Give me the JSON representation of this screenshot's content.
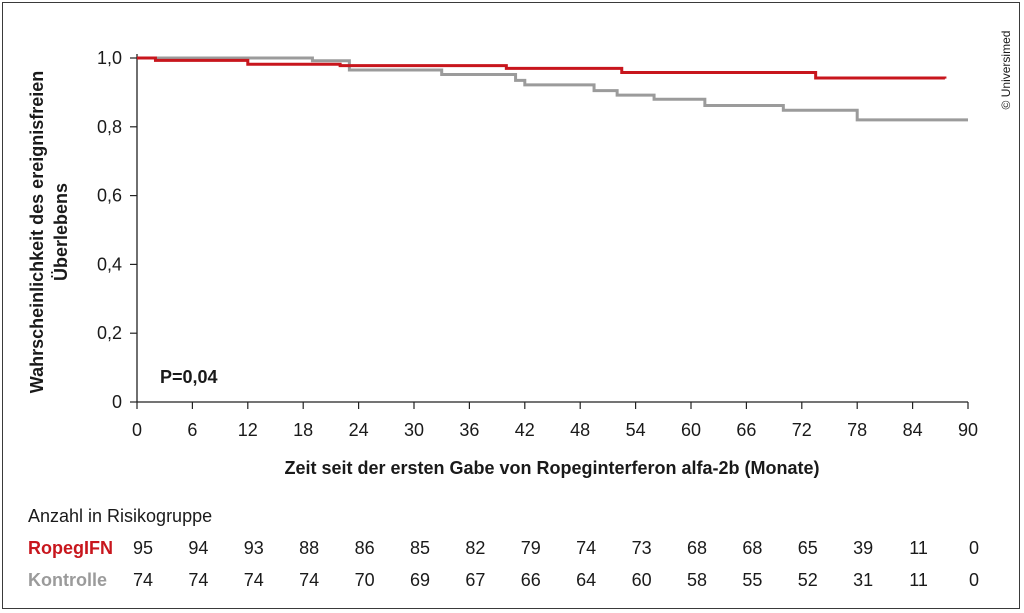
{
  "credit": "© Universimed",
  "p_value": "P=0,04",
  "chart_data": {
    "type": "line",
    "step": true,
    "xlabel": "Zeit seit der ersten Gabe von Ropeginterferon alfa-2b (Monate)",
    "ylabel_lines": [
      "Wahrscheinlichkeit des ereignisfreien",
      "Überlebens"
    ],
    "xlim": [
      0,
      90
    ],
    "ylim": [
      0,
      1
    ],
    "x_ticks": [
      0,
      6,
      12,
      18,
      24,
      30,
      36,
      42,
      48,
      54,
      60,
      66,
      72,
      78,
      84,
      90
    ],
    "x_tick_labels": [
      "0",
      "6",
      "12",
      "18",
      "24",
      "30",
      "36",
      "42",
      "48",
      "54",
      "60",
      "66",
      "72",
      "78",
      "84",
      "90"
    ],
    "y_ticks": [
      0,
      0.2,
      0.4,
      0.6,
      0.8,
      1.0
    ],
    "y_tick_labels": [
      "0",
      "0,2",
      "0,4",
      "0,6",
      "0,8",
      "1,0"
    ],
    "grid": false,
    "series": [
      {
        "name": "RopegIFN",
        "color": "#c8161d",
        "points": [
          [
            0,
            1.0
          ],
          [
            2,
            0.993
          ],
          [
            12,
            0.982
          ],
          [
            22,
            0.978
          ],
          [
            40,
            0.97
          ],
          [
            52.5,
            0.958
          ],
          [
            73.5,
            0.942
          ],
          [
            87.5,
            0.94
          ]
        ]
      },
      {
        "name": "Kontrolle",
        "color": "#9b9b9b",
        "points": [
          [
            0,
            1.0
          ],
          [
            19,
            0.992
          ],
          [
            23,
            0.965
          ],
          [
            33,
            0.952
          ],
          [
            41,
            0.935
          ],
          [
            42,
            0.922
          ],
          [
            49.5,
            0.905
          ],
          [
            52,
            0.892
          ],
          [
            56,
            0.88
          ],
          [
            61.5,
            0.862
          ],
          [
            70,
            0.848
          ],
          [
            78,
            0.82
          ],
          [
            90,
            0.82
          ]
        ]
      }
    ]
  },
  "risk_table": {
    "title": "Anzahl in Risikogruppe",
    "rows": [
      {
        "label": "RopegIFN",
        "color": "#c8161d",
        "values": [
          "95",
          "94",
          "93",
          "88",
          "86",
          "85",
          "82",
          "79",
          "74",
          "73",
          "68",
          "68",
          "65",
          "39",
          "11",
          "0"
        ]
      },
      {
        "label": "Kontrolle",
        "color": "#9b9b9b",
        "values": [
          "74",
          "74",
          "74",
          "74",
          "70",
          "69",
          "67",
          "66",
          "64",
          "60",
          "58",
          "55",
          "52",
          "31",
          "11",
          "0"
        ]
      }
    ]
  }
}
